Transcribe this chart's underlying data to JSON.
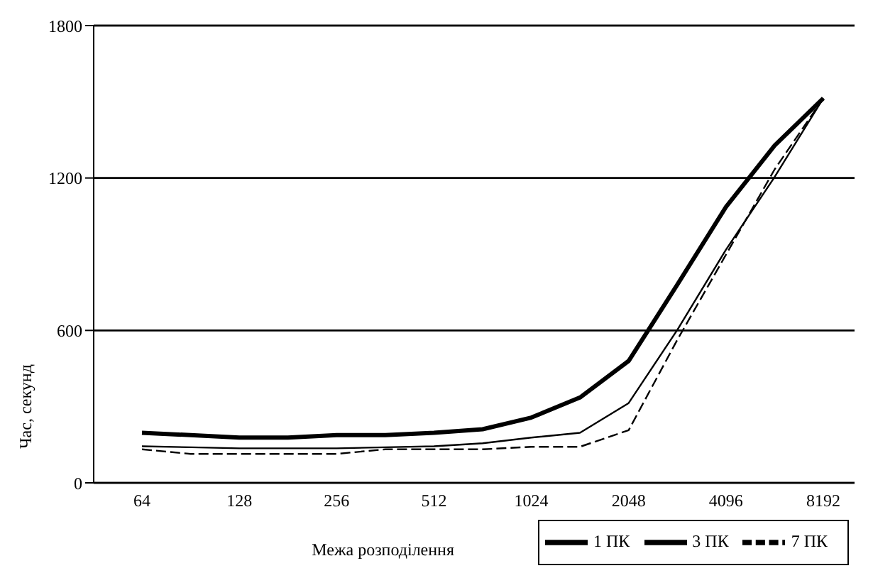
{
  "chart_data": {
    "type": "line",
    "xlabel": "Межа розподілення",
    "ylabel": "Час, секунд",
    "categories": [
      "64",
      null,
      "128",
      null,
      "256",
      null,
      "512",
      null,
      "1024",
      null,
      "2048",
      null,
      "4096",
      null,
      "8192"
    ],
    "series": [
      {
        "name": "1 ПК",
        "color": "#000000",
        "line_style": "solid",
        "values": [
          197,
          188,
          178,
          178,
          188,
          188,
          197,
          211,
          257,
          336,
          480,
          780,
          1086,
          1328,
          1514
        ]
      },
      {
        "name": "3 ПК",
        "color": "#000000",
        "line_style": "solid",
        "values": [
          144,
          140,
          136,
          136,
          136,
          140,
          144,
          156,
          178,
          197,
          314,
          602,
          918,
          1204,
          1514
        ]
      },
      {
        "name": "7 ПК",
        "color": "#000000",
        "line_style": "dashed",
        "values": [
          132,
          114,
          114,
          114,
          114,
          132,
          132,
          132,
          142,
          142,
          207,
          563,
          898,
          1234,
          1514
        ]
      }
    ],
    "ylim": [
      0,
      1800
    ],
    "yticks": [
      0,
      600,
      1200,
      1800
    ],
    "grid": "y",
    "legend": "bottom",
    "marker": "none"
  }
}
